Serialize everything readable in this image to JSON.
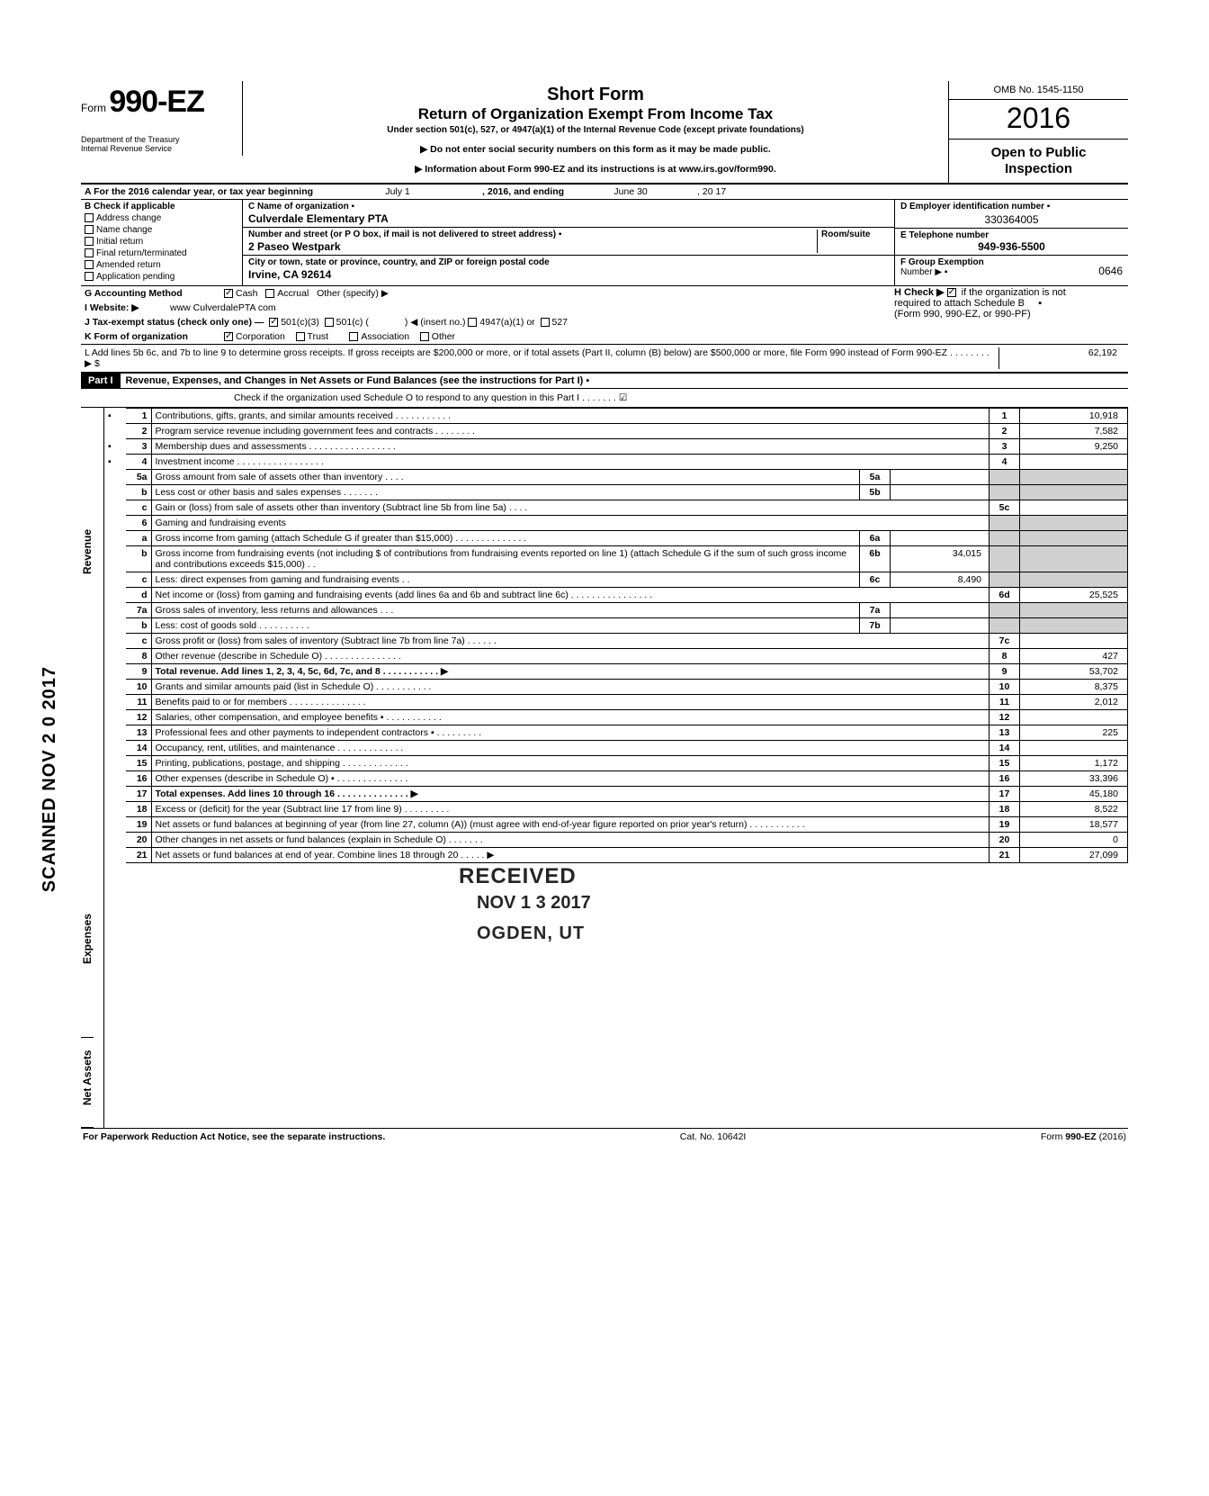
{
  "form": {
    "prefix": "Form",
    "number": "990-EZ",
    "title1": "Short Form",
    "title2": "Return of Organization Exempt From Income Tax",
    "under": "Under section 501(c), 527, or 4947(a)(1) of the Internal Revenue Code (except private foundations)",
    "arrow1": "▶ Do not enter social security numbers on this form as it may be made public.",
    "arrow2": "▶ Information about Form 990-EZ and its instructions is at www.irs.gov/form990.",
    "dept1": "Department of the Treasury",
    "dept2": "Internal Revenue Service",
    "omb": "OMB No. 1545-1150",
    "year": "2016",
    "open1": "Open to Public",
    "open2": "Inspection"
  },
  "lineA": {
    "label": "A  For the 2016 calendar year, or tax year beginning",
    "begin": "July 1",
    "mid": ", 2016, and ending",
    "end": "June 30",
    "endyr": ", 20   17"
  },
  "b": {
    "header": "B  Check if applicable",
    "items": [
      "Address change",
      "Name change",
      "Initial return",
      "Final return/terminated",
      "Amended return",
      "Application pending"
    ]
  },
  "c": {
    "nameLabel": "C  Name of organization  ▪",
    "name": "Culverdale Elementary PTA",
    "addrLabel": "Number and street (or P O  box, if mail is not delivered to street address)   ▪",
    "roomLabel": "Room/suite",
    "addr": "2 Paseo Westpark",
    "cityLabel": "City or town, state or province, country, and ZIP or foreign postal code",
    "city": "Irvine, CA   92614"
  },
  "d": {
    "label": "D Employer identification number  ▪",
    "val": "330364005"
  },
  "e": {
    "label": "E  Telephone number",
    "val": "949-936-5500"
  },
  "f": {
    "label": "F  Group Exemption",
    "label2": "Number  ▶  ▪",
    "val": "0646"
  },
  "g": {
    "label": "G  Accounting Method",
    "cash": "Cash",
    "accrual": "Accrual",
    "other": "Other (specify) ▶"
  },
  "h": {
    "label": "H  Check ▶",
    "text1": "if the organization is not",
    "text2": "required to attach Schedule B",
    "text3": "(Form 990, 990-EZ, or 990-PF)"
  },
  "i": {
    "label": "I   Website: ▶",
    "val": "www CulverdalePTA com"
  },
  "j": {
    "label": "J  Tax-exempt status (check only one) —",
    "o1": "501(c)(3)",
    "o2": "501(c) (",
    "o3": ")  ◀ (insert no.)",
    "o4": "4947(a)(1) or",
    "o5": "527"
  },
  "k": {
    "label": "K  Form of organization",
    "o1": "Corporation",
    "o2": "Trust",
    "o3": "Association",
    "o4": "Other"
  },
  "l": {
    "text": "L  Add lines 5b  6c, and 7b to line 9 to determine gross receipts. If gross receipts are $200,000 or more, or if total assets (Part II, column (B) below) are $500,000 or more, file Form 990 instead of Form 990-EZ .     .     .      .     .      .     .      .   ▶   $",
    "val": "62,192"
  },
  "part1": {
    "hdr": "Part I",
    "title": "Revenue, Expenses, and Changes in Net Assets or Fund Balances (see the instructions for Part I) ▪",
    "checkO": "Check if the organization used Schedule O to respond to any question in this Part I  .    .    .    .    .    .    .    ☑"
  },
  "sideLabels": {
    "rev": "Revenue",
    "exp": "Expenses",
    "net": "Net Assets"
  },
  "rows": [
    {
      "n": "1",
      "desc": "Contributions, gifts, grants, and similar amounts received .    .    .     .      .    .    .    .    .    .     .",
      "col": "1",
      "val": "10,918",
      "mark": "▪"
    },
    {
      "n": "2",
      "desc": "Program service revenue including government fees and contracts      .    .    .    .    .    .    .    .",
      "col": "2",
      "val": "7,582"
    },
    {
      "n": "3",
      "desc": "Membership dues and assessments .    .    .    .     .     .    .    .    .    .    .    .    .    .    .    .     .",
      "col": "3",
      "val": "9,250",
      "mark": "▪"
    },
    {
      "n": "4",
      "desc": "Investment income     .     .     .        .       .    .    .    .    .    .    .    .    .    .    .    .    .",
      "col": "4",
      "val": "",
      "mark": "▪"
    },
    {
      "n": "5a",
      "desc": "Gross amount from sale of assets other than inventory    .    .    .    .",
      "box": "5a",
      "boxval": ""
    },
    {
      "n": "b",
      "desc": "Less cost or other basis and sales expenses .    .    .    .    .    .    .",
      "box": "5b",
      "boxval": ""
    },
    {
      "n": "c",
      "desc": "Gain or (loss) from sale of assets other than inventory (Subtract line 5b from line 5a)  .    .    .    .",
      "col": "5c",
      "val": ""
    },
    {
      "n": "6",
      "desc": "Gaming and fundraising events"
    },
    {
      "n": "a",
      "desc": "Gross income from gaming (attach Schedule G if greater than $15,000)  .         .    .    .    .    .    .    .    .    .    .    .    .    .",
      "box": "6a",
      "boxval": ""
    },
    {
      "n": "b",
      "desc": "Gross income from fundraising events (not including  $                         of contributions from fundraising events reported on line 1) (attach Schedule G if the sum of such gross income and contributions exceeds $15,000) .   .",
      "box": "6b",
      "boxval": "34,015"
    },
    {
      "n": "c",
      "desc": "Less: direct expenses from gaming and fundraising events        .    .",
      "box": "6c",
      "boxval": "8,490"
    },
    {
      "n": "d",
      "desc": "Net income or (loss) from gaming and fundraising events (add lines 6a and 6b and subtract line 6c)       .    .    .     .     .    .    .    .    .    .    .     .    .    .    .     .",
      "col": "6d",
      "val": "25,525"
    },
    {
      "n": "7a",
      "desc": "Gross sales of inventory, less returns and allowances    .    .    .",
      "box": "7a",
      "boxval": ""
    },
    {
      "n": "b",
      "desc": "Less: cost of goods sold     .    .    .    .    .    .    .    .    .    .",
      "box": "7b",
      "boxval": ""
    },
    {
      "n": "c",
      "desc": "Gross profit or (loss) from sales of inventory (Subtract line 7b from line 7a)    .    .     .    .    .    .",
      "col": "7c",
      "val": ""
    },
    {
      "n": "8",
      "desc": "Other revenue (describe in Schedule O)   .    .    .    .    .    .    .     .    .    .    .    .    .    .    .",
      "col": "8",
      "val": "427"
    },
    {
      "n": "9",
      "desc": "Total revenue. Add lines 1, 2, 3, 4, 5c, 6d, 7c, and 8    .    .    .    .    .    .    .    .    .    .    .   ▶",
      "col": "9",
      "val": "53,702",
      "bold": true
    },
    {
      "n": "10",
      "desc": "Grants and similar amounts paid (list in Schedule O)    .    .    .    .      .    .    .     .    .     .    .",
      "col": "10",
      "val": "8,375"
    },
    {
      "n": "11",
      "desc": "Benefits paid to or for members        .    .    .    .    .    .    .    .    .    .    .    .    .    .    .",
      "col": "11",
      "val": "2,012"
    },
    {
      "n": "12",
      "desc": "Salaries, other compensation, and employee benefits ▪    .    .    .    .    .    .    .    .    .    .    .",
      "col": "12",
      "val": ""
    },
    {
      "n": "13",
      "desc": "Professional fees and other payments to independent contractors ▪ .    .    .     .    .    .    .    .    .",
      "col": "13",
      "val": "225"
    },
    {
      "n": "14",
      "desc": "Occupancy, rent, utilities, and maintenance     .    .    .    .    .    .    .    .    .    .    .    .    .",
      "col": "14",
      "val": ""
    },
    {
      "n": "15",
      "desc": "Printing, publications, postage, and shipping     .    .    .    .    .    .    .    .    .    .    .    .    .",
      "col": "15",
      "val": "1,172"
    },
    {
      "n": "16",
      "desc": "Other expenses (describe in Schedule O) ▪   .    .    .    .    .    .    .    .    .    .    .    .    .    .",
      "col": "16",
      "val": "33,396"
    },
    {
      "n": "17",
      "desc": "Total expenses. Add lines 10 through 16  .    .    .    .    .    .    .    .    .    .    .    .    .    .   ▶",
      "col": "17",
      "val": "45,180",
      "bold": true
    },
    {
      "n": "18",
      "desc": "Excess or (deficit) for the year (Subtract line 17 from line 9)    .    .     .    .    .     .    .    .    .",
      "col": "18",
      "val": "8,522"
    },
    {
      "n": "19",
      "desc": "Net assets or fund balances at beginning of year (from line 27, column (A)) (must agree with end-of-year figure reported on prior year's return)     .    .    .    .    .     .    .    .    .    .    .",
      "col": "19",
      "val": "18,577"
    },
    {
      "n": "20",
      "desc": "Other changes in net assets or fund balances (explain in Schedule O)     .    .     .    .    .     .    .",
      "col": "20",
      "val": "0"
    },
    {
      "n": "21",
      "desc": "Net assets or fund balances at end of year. Combine lines 18 through 20    .    .     .    .    .  ▶",
      "col": "21",
      "val": "27,099"
    }
  ],
  "footer": {
    "left": "For Paperwork Reduction Act Notice, see the separate instructions.",
    "mid": "Cat. No. 10642I",
    "right": "Form 990-EZ (2016)"
  },
  "stamps": {
    "received": "RECEIVED",
    "date": "NOV 1 3 2017",
    "ogden": "OGDEN, UT",
    "scanned": "SCANNED NOV 2 0 2017"
  }
}
